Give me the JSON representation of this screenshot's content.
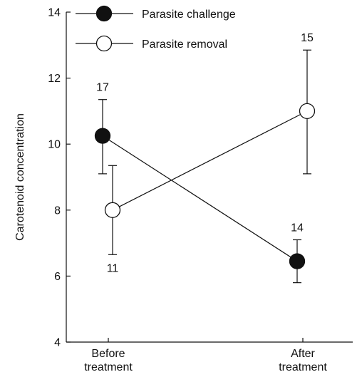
{
  "chart_data": {
    "type": "line",
    "ylabel": "Carotenoid concentration",
    "ylim": [
      4,
      14
    ],
    "yticks": [
      4,
      6,
      8,
      10,
      12,
      14
    ],
    "categories": [
      "Before\ntreatment",
      "After\ntreatment"
    ],
    "grid": false,
    "legend_position": "top-left",
    "series": [
      {
        "name": "Parasite challenge",
        "marker": "filled-circle",
        "color": "#111111",
        "values": [
          10.25,
          6.45
        ],
        "errors": [
          [
            9.1,
            11.35
          ],
          [
            5.8,
            7.1
          ]
        ],
        "n_labels": [
          "17",
          "14"
        ]
      },
      {
        "name": "Parasite removal",
        "marker": "open-circle",
        "color": "#111111",
        "values": [
          8.0,
          11.0
        ],
        "errors": [
          [
            6.65,
            9.35
          ],
          [
            9.1,
            12.85
          ]
        ],
        "n_labels": [
          "11",
          "15"
        ]
      }
    ]
  }
}
